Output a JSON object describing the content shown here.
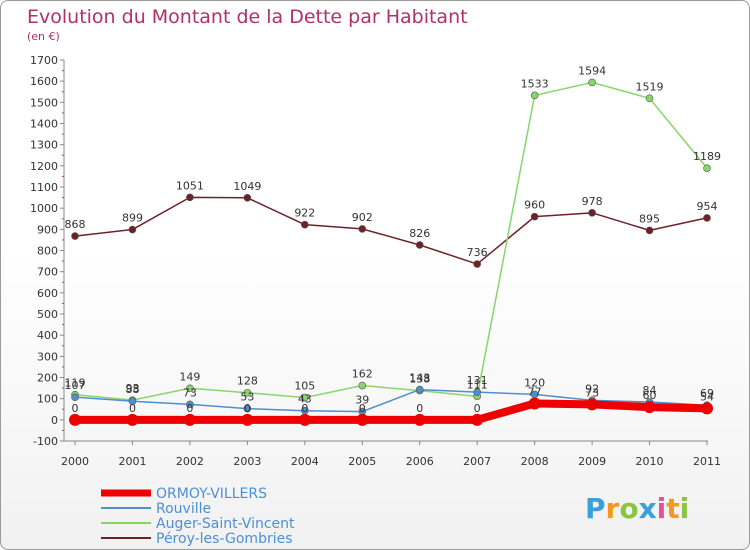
{
  "chart_data": {
    "type": "line",
    "title": "Evolution du Montant de la Dette par Habitant",
    "subtitle": "(en €)",
    "xlabel": "",
    "ylabel": "",
    "categories": [
      "2000",
      "2001",
      "2002",
      "2003",
      "2004",
      "2005",
      "2006",
      "2007",
      "2008",
      "2009",
      "2010",
      "2011"
    ],
    "ylim": [
      -100,
      1700
    ],
    "yticks": [
      -100,
      0,
      100,
      200,
      300,
      400,
      500,
      600,
      700,
      800,
      900,
      1000,
      1100,
      1200,
      1300,
      1400,
      1500,
      1600,
      1700
    ],
    "grid": false,
    "legend_position": "bottom-left",
    "series": [
      {
        "name": "ORMOY-VILLERS",
        "color": "#ee0000",
        "values": [
          0,
          0,
          0,
          0,
          0,
          0,
          0,
          0,
          77,
          73,
          60,
          54
        ],
        "labels": [
          "0",
          "0",
          "0",
          "0",
          "0",
          "0",
          "0",
          "0",
          "77",
          "73",
          "60",
          "54"
        ]
      },
      {
        "name": "Rouville",
        "color": "#4f8fce",
        "values": [
          107,
          88,
          73,
          53,
          43,
          39,
          143,
          131,
          120,
          92,
          84,
          69
        ],
        "labels": [
          "107",
          "88",
          "73",
          "53",
          "43",
          "39",
          "143",
          "131",
          "120",
          "92",
          "84",
          "69"
        ]
      },
      {
        "name": "Auger-Saint-Vincent",
        "color": "#88d66a",
        "values": [
          119,
          93,
          149,
          128,
          105,
          162,
          138,
          111,
          1533,
          1594,
          1519,
          1189
        ],
        "labels": [
          "119",
          "93",
          "149",
          "128",
          "105",
          "162",
          "138",
          "111",
          "1533",
          "1594",
          "1519",
          "1189"
        ]
      },
      {
        "name": "Péroy-les-Gombries",
        "color": "#6e2228",
        "values": [
          868,
          899,
          1051,
          1049,
          922,
          902,
          826,
          736,
          960,
          978,
          895,
          954
        ],
        "labels": [
          "868",
          "899",
          "1051",
          "1049",
          "922",
          "902",
          "826",
          "736",
          "960",
          "978",
          "895",
          "954"
        ]
      }
    ]
  },
  "logo": {
    "letters": [
      "P",
      "r",
      "o",
      "x",
      "i",
      "t",
      "i"
    ],
    "colors": [
      "#3aa0dc",
      "#f29a1e",
      "#8bc53f",
      "#3aa0dc",
      "#e84f9b",
      "#f29a1e",
      "#8bc53f"
    ]
  }
}
